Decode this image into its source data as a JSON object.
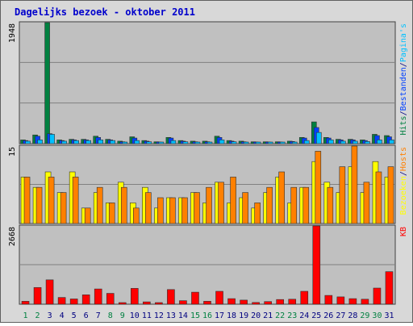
{
  "colors": {
    "page_bg": "#ffffff",
    "frame_bg": "#d8d8d8",
    "panel_bg": "#c0c0c0",
    "grid": "#808080",
    "title": "#0000cc",
    "hits": "#008040",
    "files": "#0040ff",
    "pages": "#00c0ff",
    "visits": "#ffff00",
    "hosts": "#ff8000",
    "kb": "#ff0000",
    "weekend_day_label": "#008040",
    "weekday_label": "#000080"
  },
  "chart_data": {
    "type": "bar",
    "title": "Dagelijks bezoek - oktober 2011",
    "grid": true,
    "categories": [
      "1",
      "2",
      "3",
      "4",
      "5",
      "6",
      "7",
      "8",
      "9",
      "10",
      "11",
      "12",
      "13",
      "14",
      "15",
      "16",
      "17",
      "18",
      "19",
      "20",
      "21",
      "22",
      "23",
      "24",
      "25",
      "26",
      "27",
      "28",
      "29",
      "30",
      "31"
    ],
    "weekend_days": [
      "1",
      "2",
      "8",
      "9",
      "15",
      "16",
      "22",
      "23",
      "29",
      "30"
    ],
    "panels": [
      {
        "id": "hits_panel",
        "max_label": "1948",
        "ymax": 1948,
        "side_label": [
          {
            "text": "Hits",
            "color": "hits"
          },
          {
            "text": "/",
            "color": "weekday_label"
          },
          {
            "text": "Bestanden",
            "color": "files"
          },
          {
            "text": "/",
            "color": "weekday_label"
          },
          {
            "text": "Pagina's",
            "color": "pages"
          }
        ],
        "series": [
          {
            "name": "Hits",
            "color": "hits",
            "values": [
              60,
              140,
              1948,
              60,
              70,
              70,
              120,
              70,
              40,
              110,
              50,
              30,
              100,
              50,
              40,
              40,
              120,
              50,
              40,
              30,
              30,
              30,
              40,
              100,
              350,
              100,
              70,
              70,
              60,
              150,
              130
            ]
          },
          {
            "name": "Bestanden",
            "color": "files",
            "values": [
              50,
              120,
              160,
              50,
              60,
              60,
              100,
              60,
              30,
              90,
              40,
              25,
              90,
              40,
              30,
              30,
              100,
              40,
              30,
              25,
              25,
              25,
              35,
              90,
              260,
              90,
              60,
              60,
              50,
              130,
              110
            ]
          },
          {
            "name": "Pagina's",
            "color": "pages",
            "values": [
              40,
              60,
              150,
              40,
              50,
              50,
              60,
              50,
              25,
              50,
              30,
              20,
              50,
              30,
              25,
              25,
              60,
              30,
              25,
              20,
              20,
              20,
              25,
              50,
              180,
              60,
              40,
              40,
              35,
              60,
              60
            ]
          }
        ]
      },
      {
        "id": "visits_panel",
        "max_label": "15",
        "ymax": 15,
        "side_label": [
          {
            "text": "Bezoeken",
            "color": "visits"
          },
          {
            "text": "/",
            "color": "weekday_label"
          },
          {
            "text": "Hosts",
            "color": "hosts"
          }
        ],
        "series": [
          {
            "name": "Bezoeken",
            "color": "visits",
            "values": [
              9,
              7,
              10,
              6,
              10,
              3,
              6,
              4,
              8,
              4,
              7,
              3,
              5,
              5,
              6,
              4,
              8,
              4,
              5,
              3,
              6,
              9,
              4,
              7,
              12,
              8,
              6,
              11,
              6,
              12,
              9
            ]
          },
          {
            "name": "Hosts",
            "color": "hosts",
            "values": [
              9,
              7,
              9,
              6,
              9,
              3,
              7,
              4,
              7,
              3,
              6,
              5,
              5,
              5,
              6,
              7,
              8,
              9,
              6,
              4,
              7,
              10,
              7,
              7,
              14,
              7,
              11,
              15,
              8,
              10,
              11
            ]
          }
        ]
      },
      {
        "id": "kb_panel",
        "max_label": "2668",
        "ymax": 2668,
        "side_label": [
          {
            "text": "KB",
            "color": "kb"
          }
        ],
        "series": [
          {
            "name": "KB",
            "color": "kb",
            "values": [
              100,
              570,
              830,
              230,
              180,
              320,
              520,
              370,
              30,
              540,
              80,
              30,
              500,
              120,
              410,
              100,
              440,
              190,
              140,
              60,
              90,
              160,
              170,
              440,
              2668,
              300,
              250,
              190,
              170,
              550,
              1110
            ]
          }
        ]
      }
    ]
  }
}
